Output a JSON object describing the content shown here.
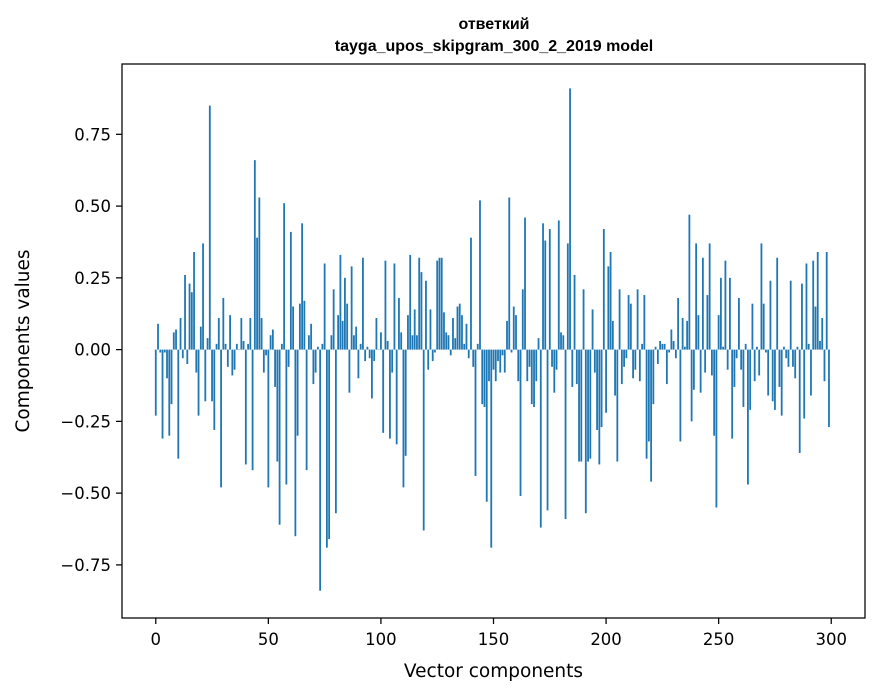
{
  "chart_data": {
    "type": "bar",
    "title_line1": "ответкий",
    "title_line2": "tayga_upos_skipgram_300_2_2019 model",
    "xlabel": "Vector components",
    "ylabel": "Components values",
    "xlim": [
      -15,
      315
    ],
    "ylim": [
      -0.935,
      0.995
    ],
    "xticks": [
      0,
      50,
      100,
      150,
      200,
      250,
      300
    ],
    "xtick_labels": [
      "0",
      "50",
      "100",
      "150",
      "200",
      "250",
      "300"
    ],
    "yticks": [
      -0.75,
      -0.5,
      -0.25,
      0.0,
      0.25,
      0.5,
      0.75
    ],
    "ytick_labels": [
      "−0.75",
      "−0.50",
      "−0.25",
      "0.00",
      "0.25",
      "0.50",
      "0.75"
    ],
    "grid": false,
    "bar_color": "#1f77b4",
    "values": [
      -0.23,
      0.09,
      -0.01,
      -0.31,
      -0.01,
      -0.1,
      -0.3,
      -0.19,
      0.06,
      0.07,
      -0.38,
      0.11,
      -0.03,
      0.26,
      -0.05,
      0.23,
      0.2,
      0.34,
      -0.08,
      -0.23,
      0.08,
      0.37,
      -0.18,
      0.04,
      0.85,
      -0.18,
      -0.28,
      0.02,
      0.11,
      -0.48,
      0.18,
      0.02,
      -0.06,
      0.12,
      -0.09,
      -0.07,
      0.02,
      0.0,
      0.11,
      0.03,
      -0.4,
      0.02,
      0.11,
      -0.42,
      0.66,
      0.39,
      0.53,
      0.11,
      -0.08,
      -0.02,
      -0.48,
      0.05,
      0.07,
      -0.13,
      -0.39,
      -0.61,
      0.02,
      0.51,
      -0.47,
      -0.06,
      0.41,
      0.15,
      -0.65,
      -0.3,
      0.16,
      0.44,
      0.17,
      -0.42,
      0.05,
      0.09,
      -0.12,
      -0.08,
      0.01,
      -0.84,
      0.02,
      0.3,
      -0.69,
      -0.66,
      0.05,
      0.21,
      -0.57,
      0.12,
      0.33,
      0.1,
      0.25,
      0.16,
      -0.15,
      0.29,
      0.05,
      0.08,
      -0.1,
      0.02,
      0.32,
      -0.04,
      0.01,
      -0.03,
      -0.17,
      -0.04,
      0.11,
      0.0,
      0.06,
      -0.29,
      0.31,
      0.03,
      -0.31,
      -0.08,
      0.3,
      -0.33,
      0.18,
      0.06,
      -0.48,
      -0.37,
      0.12,
      0.33,
      0.05,
      0.14,
      0.05,
      0.32,
      0.27,
      -0.63,
      0.24,
      -0.07,
      0.14,
      -0.04,
      -0.01,
      0.31,
      0.32,
      0.32,
      0.13,
      0.06,
      0.05,
      -0.02,
      0.11,
      0.04,
      0.15,
      0.16,
      0.12,
      0.02,
      0.09,
      -0.03,
      0.39,
      -0.06,
      -0.44,
      0.02,
      0.52,
      -0.19,
      -0.2,
      -0.53,
      -0.11,
      -0.69,
      -0.07,
      -0.11,
      -0.04,
      -0.08,
      -0.02,
      -0.08,
      0.1,
      0.53,
      -0.01,
      0.15,
      0.12,
      -0.11,
      -0.51,
      0.21,
      0.46,
      -0.11,
      -0.06,
      -0.19,
      -0.2,
      -0.11,
      0.04,
      -0.62,
      0.44,
      0.38,
      -0.56,
      0.42,
      -0.06,
      -0.15,
      -0.07,
      0.45,
      0.06,
      0.05,
      -0.59,
      0.37,
      0.91,
      -0.13,
      0.26,
      -0.12,
      -0.39,
      -0.39,
      0.21,
      -0.57,
      -0.39,
      -0.38,
      0.14,
      -0.08,
      -0.28,
      -0.4,
      -0.27,
      0.42,
      -0.22,
      0.29,
      0.34,
      0.1,
      -0.16,
      -0.39,
      0.21,
      -0.12,
      -0.06,
      -0.03,
      0.19,
      0.16,
      -0.1,
      -0.07,
      0.21,
      -0.11,
      0.02,
      0.19,
      -0.38,
      -0.32,
      -0.46,
      -0.19,
      0.01,
      -0.05,
      0.03,
      0.02,
      0.02,
      -0.12,
      -0.01,
      0.07,
      0.03,
      -0.03,
      0.18,
      -0.32,
      0.11,
      0.01,
      0.1,
      0.47,
      -0.25,
      -0.14,
      0.37,
      0.12,
      -0.15,
      0.32,
      -0.08,
      0.19,
      0.37,
      -0.09,
      -0.3,
      -0.55,
      0.12,
      0.25,
      0.01,
      0.31,
      -0.07,
      0.25,
      -0.31,
      -0.13,
      -0.03,
      0.18,
      -0.07,
      -0.2,
      0.02,
      -0.47,
      -0.21,
      0.16,
      -0.11,
      0.01,
      -0.09,
      0.37,
      0.16,
      -0.01,
      -0.16,
      0.24,
      -0.18,
      -0.21,
      0.32,
      -0.13,
      -0.23,
      0.01,
      -0.03,
      -0.06,
      0.24,
      -0.06,
      -0.1,
      0.01,
      -0.36,
      0.23,
      -0.24,
      0.3,
      0.02,
      -0.16,
      0.31,
      0.15,
      0.34,
      0.03,
      0.11,
      -0.11,
      0.34,
      -0.27
    ]
  }
}
